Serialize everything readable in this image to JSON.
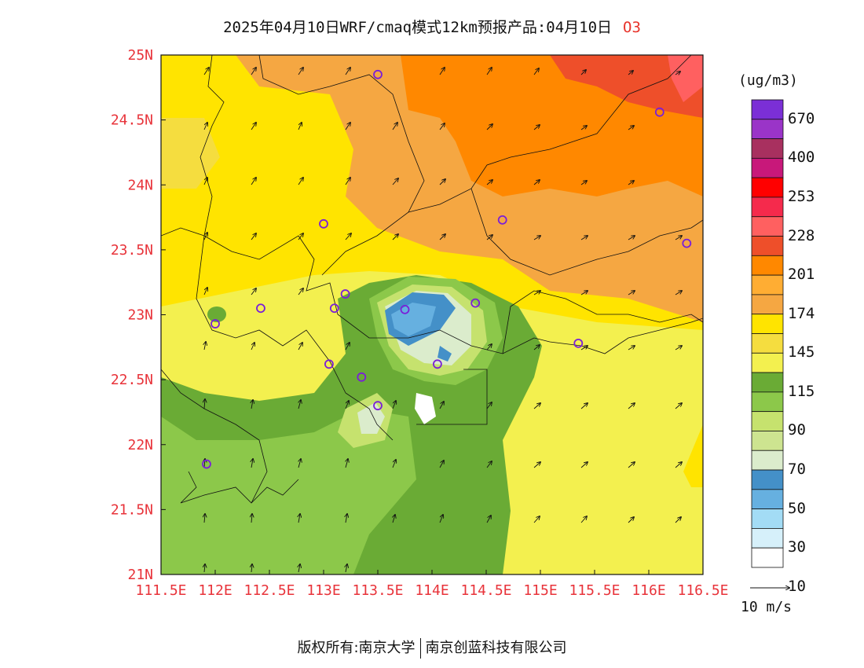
{
  "title": {
    "text": "2025年04月10日WRF/cmaq模式12km预报产品:04月10日",
    "pollutant": "O3"
  },
  "axes": {
    "x_ticks": [
      "111.5E",
      "112E",
      "112.5E",
      "113E",
      "113.5E",
      "114E",
      "114.5E",
      "115E",
      "115.5E",
      "116E",
      "116.5E"
    ],
    "y_ticks": [
      "25N",
      "24.5N",
      "24N",
      "23.5N",
      "23N",
      "22.5N",
      "22N",
      "21.5N",
      "21N"
    ],
    "xlim": [
      111.5,
      116.5
    ],
    "ylim": [
      21,
      25
    ]
  },
  "colorbar": {
    "unit": "(ug/m3)",
    "labels": [
      "670",
      "400",
      "253",
      "228",
      "201",
      "174",
      "145",
      "115",
      "90",
      "70",
      "50",
      "30",
      "10"
    ],
    "colors": [
      "#7b2fd6",
      "#9a34c8",
      "#a8305f",
      "#c8187a",
      "#ff0000",
      "#f52a4c",
      "#ff6060",
      "#ee4f2a",
      "#ff8800",
      "#ffad33",
      "#f5a742",
      "#ffe400",
      "#f5dd3f",
      "#f3f04f",
      "#6aab35",
      "#8cc84a",
      "#c6e26e",
      "#cde490",
      "#dbeccc",
      "#4490c8",
      "#66b0e0",
      "#a3dcf5",
      "#d6f0fa",
      "#ffffff"
    ]
  },
  "vector_scale": {
    "label": "10 m/s"
  },
  "stations": [
    {
      "lon": 113.5,
      "lat": 24.85
    },
    {
      "lon": 116.1,
      "lat": 24.56
    },
    {
      "lon": 114.65,
      "lat": 23.73
    },
    {
      "lon": 113.0,
      "lat": 23.7
    },
    {
      "lon": 116.35,
      "lat": 23.55
    },
    {
      "lon": 113.2,
      "lat": 23.16
    },
    {
      "lon": 113.1,
      "lat": 23.05
    },
    {
      "lon": 113.75,
      "lat": 23.04
    },
    {
      "lon": 114.4,
      "lat": 23.09
    },
    {
      "lon": 112.42,
      "lat": 23.05
    },
    {
      "lon": 112.0,
      "lat": 22.93
    },
    {
      "lon": 115.35,
      "lat": 22.78
    },
    {
      "lon": 113.05,
      "lat": 22.62
    },
    {
      "lon": 114.05,
      "lat": 22.62
    },
    {
      "lon": 113.35,
      "lat": 22.52
    },
    {
      "lon": 113.5,
      "lat": 22.3
    },
    {
      "lon": 111.92,
      "lat": 21.85
    }
  ],
  "footer": {
    "left": "版权所有:南京大学",
    "right": "南京创蓝科技有限公司"
  }
}
